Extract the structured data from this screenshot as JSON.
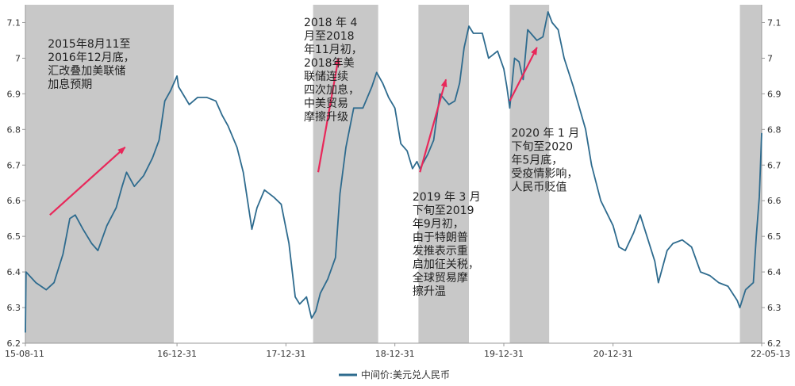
{
  "chart_data": {
    "type": "line",
    "title": "",
    "xlabel": "",
    "ylabel": "",
    "ylim": [
      6.2,
      7.15
    ],
    "yticks": [
      6.2,
      6.3,
      6.4,
      6.5,
      6.6,
      6.7,
      6.8,
      6.9,
      7.0,
      7.1
    ],
    "ytick_labels": [
      "6.2",
      "6.3",
      "6.4",
      "6.5",
      "6.6",
      "6.7",
      "6.8",
      "6.9",
      "7",
      "7.1"
    ],
    "x_range": [
      "2015-08-11",
      "2022-05-13"
    ],
    "xticks": [
      {
        "date": "2015-08-11",
        "label": "15-08-11"
      },
      {
        "date": "2016-12-31",
        "label": "16-12-31"
      },
      {
        "date": "2017-12-31",
        "label": "17-12-31"
      },
      {
        "date": "2018-12-31",
        "label": "18-12-31"
      },
      {
        "date": "2019-12-31",
        "label": "19-12-31"
      },
      {
        "date": "2020-12-31",
        "label": "20-12-31"
      },
      {
        "date": "2022-05-13",
        "label": "22-05-13"
      }
    ],
    "grid": false,
    "legend_position": "bottom",
    "series": [
      {
        "name": "中间价:美元兑人民币",
        "color": "#2e6b8e",
        "points": [
          [
            "2015-08-11",
            6.23
          ],
          [
            "2015-08-13",
            6.4
          ],
          [
            "2015-09-15",
            6.37
          ],
          [
            "2015-10-20",
            6.35
          ],
          [
            "2015-11-15",
            6.37
          ],
          [
            "2015-12-15",
            6.45
          ],
          [
            "2016-01-07",
            6.55
          ],
          [
            "2016-01-25",
            6.56
          ],
          [
            "2016-02-20",
            6.52
          ],
          [
            "2016-03-20",
            6.48
          ],
          [
            "2016-04-10",
            6.46
          ],
          [
            "2016-05-10",
            6.53
          ],
          [
            "2016-06-10",
            6.58
          ],
          [
            "2016-06-30",
            6.64
          ],
          [
            "2016-07-15",
            6.68
          ],
          [
            "2016-08-10",
            6.64
          ],
          [
            "2016-09-10",
            6.67
          ],
          [
            "2016-10-10",
            6.72
          ],
          [
            "2016-11-01",
            6.77
          ],
          [
            "2016-11-20",
            6.88
          ],
          [
            "2016-12-10",
            6.91
          ],
          [
            "2016-12-31",
            6.95
          ],
          [
            "2017-01-05",
            6.92
          ],
          [
            "2017-02-10",
            6.87
          ],
          [
            "2017-03-10",
            6.89
          ],
          [
            "2017-04-10",
            6.89
          ],
          [
            "2017-05-10",
            6.88
          ],
          [
            "2017-05-31",
            6.84
          ],
          [
            "2017-06-20",
            6.81
          ],
          [
            "2017-07-20",
            6.75
          ],
          [
            "2017-08-10",
            6.68
          ],
          [
            "2017-09-08",
            6.52
          ],
          [
            "2017-09-25",
            6.58
          ],
          [
            "2017-10-20",
            6.63
          ],
          [
            "2017-11-20",
            6.61
          ],
          [
            "2017-12-15",
            6.59
          ],
          [
            "2018-01-10",
            6.48
          ],
          [
            "2018-01-31",
            6.33
          ],
          [
            "2018-02-15",
            6.31
          ],
          [
            "2018-03-10",
            6.33
          ],
          [
            "2018-03-27",
            6.27
          ],
          [
            "2018-04-10",
            6.29
          ],
          [
            "2018-04-25",
            6.34
          ],
          [
            "2018-05-20",
            6.38
          ],
          [
            "2018-06-15",
            6.44
          ],
          [
            "2018-06-30",
            6.62
          ],
          [
            "2018-07-20",
            6.75
          ],
          [
            "2018-08-15",
            6.86
          ],
          [
            "2018-09-15",
            6.86
          ],
          [
            "2018-10-15",
            6.92
          ],
          [
            "2018-10-31",
            6.96
          ],
          [
            "2018-11-20",
            6.93
          ],
          [
            "2018-12-10",
            6.89
          ],
          [
            "2018-12-31",
            6.86
          ],
          [
            "2019-01-20",
            6.76
          ],
          [
            "2019-02-10",
            6.74
          ],
          [
            "2019-02-28",
            6.69
          ],
          [
            "2019-03-15",
            6.71
          ],
          [
            "2019-03-25",
            6.69
          ],
          [
            "2019-04-20",
            6.73
          ],
          [
            "2019-05-10",
            6.77
          ],
          [
            "2019-05-31",
            6.9
          ],
          [
            "2019-06-30",
            6.87
          ],
          [
            "2019-07-20",
            6.88
          ],
          [
            "2019-08-05",
            6.93
          ],
          [
            "2019-08-20",
            7.03
          ],
          [
            "2019-09-05",
            7.09
          ],
          [
            "2019-09-20",
            7.07
          ],
          [
            "2019-10-20",
            7.07
          ],
          [
            "2019-11-10",
            7.0
          ],
          [
            "2019-12-10",
            7.02
          ],
          [
            "2019-12-31",
            6.97
          ],
          [
            "2020-01-10",
            6.92
          ],
          [
            "2020-01-20",
            6.86
          ],
          [
            "2020-02-05",
            7.0
          ],
          [
            "2020-02-20",
            6.99
          ],
          [
            "2020-03-05",
            6.94
          ],
          [
            "2020-03-20",
            7.08
          ],
          [
            "2020-04-20",
            7.05
          ],
          [
            "2020-05-10",
            7.06
          ],
          [
            "2020-05-27",
            7.13
          ],
          [
            "2020-06-10",
            7.1
          ],
          [
            "2020-06-30",
            7.08
          ],
          [
            "2020-07-20",
            7.0
          ],
          [
            "2020-08-20",
            6.92
          ],
          [
            "2020-09-30",
            6.8
          ],
          [
            "2020-10-20",
            6.7
          ],
          [
            "2020-11-20",
            6.6
          ],
          [
            "2020-12-31",
            6.53
          ],
          [
            "2021-01-20",
            6.47
          ],
          [
            "2021-02-10",
            6.46
          ],
          [
            "2021-03-10",
            6.51
          ],
          [
            "2021-04-01",
            6.56
          ],
          [
            "2021-04-20",
            6.51
          ],
          [
            "2021-05-20",
            6.43
          ],
          [
            "2021-06-01",
            6.37
          ],
          [
            "2021-06-30",
            6.46
          ],
          [
            "2021-07-20",
            6.48
          ],
          [
            "2021-08-20",
            6.49
          ],
          [
            "2021-09-20",
            6.47
          ],
          [
            "2021-10-20",
            6.4
          ],
          [
            "2021-11-20",
            6.39
          ],
          [
            "2021-12-20",
            6.37
          ],
          [
            "2022-01-20",
            6.36
          ],
          [
            "2022-02-20",
            6.32
          ],
          [
            "2022-03-01",
            6.3
          ],
          [
            "2022-03-20",
            6.35
          ],
          [
            "2022-04-15",
            6.37
          ],
          [
            "2022-04-25",
            6.5
          ],
          [
            "2022-05-05",
            6.61
          ],
          [
            "2022-05-13",
            6.79
          ]
        ]
      }
    ],
    "shaded_periods": [
      {
        "start": "2015-08-11",
        "end": "2016-12-20"
      },
      {
        "start": "2018-04-01",
        "end": "2018-11-05"
      },
      {
        "start": "2019-03-20",
        "end": "2019-09-05"
      },
      {
        "start": "2020-01-20",
        "end": "2020-05-31"
      },
      {
        "start": "2022-03-01",
        "end": "2022-05-13"
      }
    ],
    "annotations": [
      {
        "lines": [
          "2015年8月11至",
          "2016年12月底，",
          "汇改叠加美联储",
          "加息预期"
        ],
        "anchor_date": "2015-10-25",
        "anchor_value": 7.03
      },
      {
        "lines": [
          "2018 年 4",
          "月至2018",
          "年11月初，",
          "2018年美",
          "联储连续",
          "四次加息，",
          "中美贸易",
          "摩擦升级"
        ],
        "anchor_date": "2018-03-01",
        "anchor_value": 7.09
      },
      {
        "lines": [
          "2019 年 3 月",
          "下旬至2019",
          "年9月初，",
          "由于特朗普",
          "发推表示重",
          "启加征关税，",
          "全球贸易摩",
          "擦升温"
        ],
        "anchor_date": "2019-02-28",
        "anchor_value": 6.6
      },
      {
        "lines": [
          "2020 年 1 月",
          "下旬至2020",
          "年5月底，",
          "受疫情影响，",
          "人民币贬值"
        ],
        "anchor_date": "2020-01-25",
        "anchor_value": 6.78
      }
    ],
    "arrows": [
      {
        "from": [
          "2015-11-01",
          6.56
        ],
        "to": [
          "2016-07-10",
          6.75
        ]
      },
      {
        "from": [
          "2018-04-18",
          6.68
        ],
        "to": [
          "2018-06-25",
          7.0
        ]
      },
      {
        "from": [
          "2019-03-25",
          6.68
        ],
        "to": [
          "2019-06-20",
          6.94
        ]
      },
      {
        "from": [
          "2020-01-20",
          6.88
        ],
        "to": [
          "2020-04-20",
          7.03
        ]
      }
    ]
  },
  "legend": {
    "label": "中间价:美元兑人民币"
  },
  "colors": {
    "line": "#2e6b8e",
    "shade": "#c8c8c8",
    "arrow": "#e8285a",
    "axis": "#999999"
  }
}
